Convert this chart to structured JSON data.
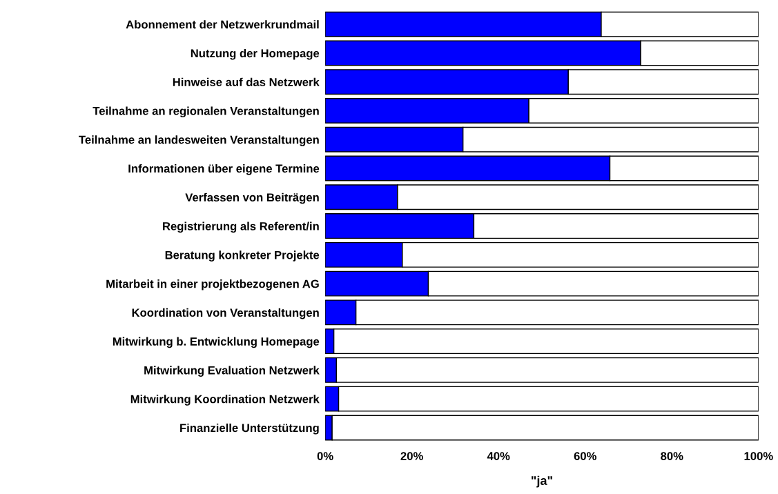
{
  "chart_data": {
    "type": "bar",
    "orientation": "horizontal",
    "stacked": true,
    "xlabel": "\"ja\"",
    "categories": [
      "Abonnement der Netzwerkrundmail",
      "Nutzung der Homepage",
      "Hinweise auf das Netzwerk",
      "Teilnahme an regionalen Veranstaltungen",
      "Teilnahme an landesweiten Veranstaltungen",
      "Informationen über eigene Termine",
      "Verfassen von Beiträgen",
      "Registrierung als Referent/in",
      "Beratung konkreter Projekte",
      "Mitarbeit in einer projektbezogenen AG",
      "Koordination von Veranstaltungen",
      "Mitwirkung b. Entwicklung Homepage",
      "Mitwirkung Evaluation Netzwerk",
      "Mitwirkung Koordination Netzwerk",
      "Finanzielle Unterstützung"
    ],
    "series": [
      {
        "color": "#0000ff",
        "values": [
          63.7,
          72.8,
          56.1,
          47.0,
          31.8,
          65.7,
          16.7,
          34.3,
          17.8,
          23.8,
          7.1,
          2.0,
          2.6,
          3.1,
          1.6
        ]
      },
      {
        "color": "#ffffff",
        "values": [
          36.3,
          27.2,
          43.9,
          53.0,
          68.2,
          34.3,
          83.3,
          65.7,
          82.2,
          76.2,
          92.9,
          98.0,
          97.4,
          96.9,
          98.4
        ]
      }
    ],
    "xlim": [
      0,
      100
    ],
    "xticks": [
      {
        "value": 0,
        "label": "0%"
      },
      {
        "value": 20,
        "label": "20%"
      },
      {
        "value": 40,
        "label": "40%"
      },
      {
        "value": 60,
        "label": "60%"
      },
      {
        "value": 80,
        "label": "80%"
      },
      {
        "value": 100,
        "label": "100%"
      }
    ],
    "grid": false,
    "legend": false
  }
}
